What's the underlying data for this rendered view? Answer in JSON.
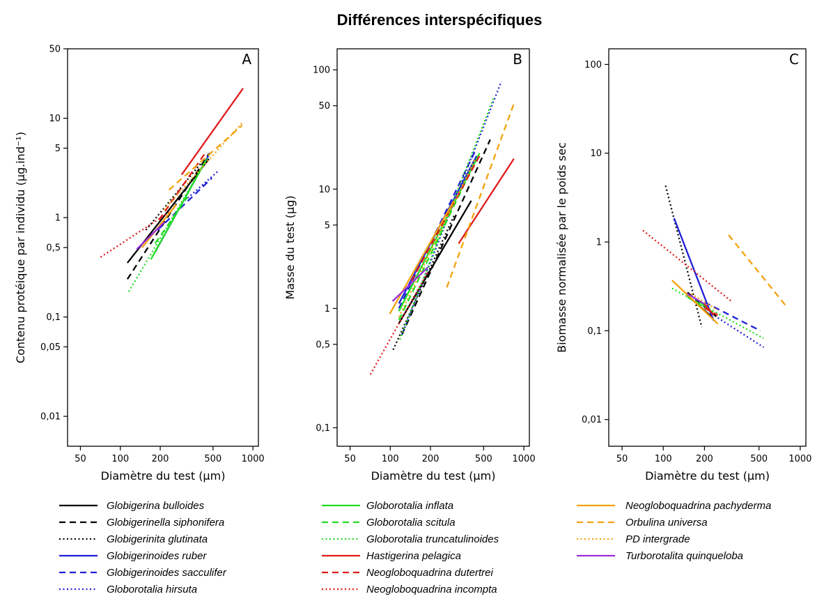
{
  "title": "Différences interspécifiques",
  "species": [
    {
      "name": "Globigerina bulloides",
      "color": "#000000",
      "dash": "solid"
    },
    {
      "name": "Globigerinella siphonifera",
      "color": "#000000",
      "dash": "dashed"
    },
    {
      "name": "Globigerinita glutinata",
      "color": "#000000",
      "dash": "dotted"
    },
    {
      "name": "Globigerinoides ruber",
      "color": "#1f1fd6",
      "dash": "solid"
    },
    {
      "name": "Globigerinoides sacculifer",
      "color": "#1f1fd6",
      "dash": "dashed"
    },
    {
      "name": "Globorotalia hirsuta",
      "color": "#1f1fd6",
      "dash": "dotted"
    },
    {
      "name": "Globorotalia inflata",
      "color": "#22dd22",
      "dash": "solid"
    },
    {
      "name": "Globorotalia scitula",
      "color": "#22dd22",
      "dash": "dashed"
    },
    {
      "name": "Globorotalia truncatulinoides",
      "color": "#22dd22",
      "dash": "dotted"
    },
    {
      "name": "Hastigerina pelagica",
      "color": "#e01b1b",
      "dash": "solid"
    },
    {
      "name": "Neogloboquadrina dutertrei",
      "color": "#e01b1b",
      "dash": "dashed"
    },
    {
      "name": "Neogloboquadrina incompta",
      "color": "#e01b1b",
      "dash": "dotted"
    },
    {
      "name": "Neogloboquadrina pachyderma",
      "color": "#f2a20c",
      "dash": "solid"
    },
    {
      "name": "Orbulina universa",
      "color": "#f2a20c",
      "dash": "dashed"
    },
    {
      "name": "PD intergrade",
      "color": "#f2a20c",
      "dash": "dotted"
    },
    {
      "name": "Turborotalita quinqueloba",
      "color": "#9b30d9",
      "dash": "solid"
    }
  ],
  "chart_data": [
    {
      "type": "line",
      "panel": "A",
      "xlabel": "Diamètre du test (µm)",
      "ylabel": "Contenu protéique par individu (µg.ind⁻¹)",
      "xscale": "log",
      "yscale": "log",
      "xlim": [
        40,
        1100
      ],
      "ylim": [
        0.005,
        50
      ],
      "xticks": [
        50,
        100,
        200,
        500,
        1000
      ],
      "xticklabels": [
        "50",
        "100",
        "200",
        "500",
        "1000"
      ],
      "yticks": [
        0.01,
        0.05,
        0.1,
        0.5,
        1,
        5,
        10,
        50
      ],
      "yticklabels": [
        "0,01",
        "0,05",
        "0,1",
        "0,5",
        "1",
        "5",
        "10",
        "50"
      ],
      "series": [
        {
          "name": "Globigerina bulloides",
          "x": [
            113,
            466
          ],
          "y": [
            0.35,
            3.9
          ]
        },
        {
          "name": "Globigerinella siphonifera",
          "x": [
            113,
            466
          ],
          "y": [
            0.24,
            4.4
          ]
        },
        {
          "name": "Globigerinita glutinata",
          "x": [
            156,
            404
          ],
          "y": [
            0.75,
            3.5
          ]
        },
        {
          "name": "Globigerinoides ruber",
          "x": [
            183,
            475
          ],
          "y": [
            0.45,
            4.5
          ]
        },
        {
          "name": "Globigerinoides sacculifer",
          "x": [
            191,
            490
          ],
          "y": [
            0.75,
            2.5
          ]
        },
        {
          "name": "Globorotalia hirsuta",
          "x": [
            291,
            541
          ],
          "y": [
            1.4,
            2.9
          ]
        },
        {
          "name": "Globorotalia inflata",
          "x": [
            170,
            443
          ],
          "y": [
            0.38,
            3.8
          ]
        },
        {
          "name": "Globorotalia scitula",
          "x": [
            183,
            320
          ],
          "y": [
            0.55,
            1.6
          ]
        },
        {
          "name": "Globorotalia truncatulinoides",
          "x": [
            116,
            466
          ],
          "y": [
            0.18,
            4.2
          ]
        },
        {
          "name": "Hastigerina pelagica",
          "x": [
            290,
            843
          ],
          "y": [
            2.7,
            20.0
          ]
        },
        {
          "name": "Neogloboquadrina dutertrei",
          "x": [
            196,
            443
          ],
          "y": [
            0.95,
            4.6
          ]
        },
        {
          "name": "Neogloboquadrina incompta",
          "x": [
            71,
            250
          ],
          "y": [
            0.4,
            1.2
          ]
        },
        {
          "name": "Neogloboquadrina pachyderma",
          "x": [
            146,
            264
          ],
          "y": [
            0.5,
            1.35
          ]
        },
        {
          "name": "Orbulina universa",
          "x": [
            233,
            830
          ],
          "y": [
            1.9,
            8.5
          ]
        },
        {
          "name": "PD intergrade",
          "x": [
            213,
            830
          ],
          "y": [
            1.2,
            9.0
          ]
        },
        {
          "name": "Turborotalita quinqueloba",
          "x": [
            133,
            215
          ],
          "y": [
            0.48,
            0.9
          ]
        }
      ]
    },
    {
      "type": "line",
      "panel": "B",
      "xlabel": "Diamètre du test (µm)",
      "ylabel": "Masse du test (µg)",
      "xscale": "log",
      "yscale": "log",
      "xlim": [
        40,
        1100
      ],
      "ylim": [
        0.07,
        150
      ],
      "xticks": [
        50,
        100,
        200,
        500,
        1000
      ],
      "xticklabels": [
        "50",
        "100",
        "200",
        "500",
        "1000"
      ],
      "yticks": [
        0.1,
        0.5,
        1,
        5,
        10,
        50,
        100
      ],
      "yticklabels": [
        "0,1",
        "0,5",
        "1",
        "5",
        "10",
        "50",
        "100"
      ],
      "series": [
        {
          "name": "Globigerina bulloides",
          "x": [
            116,
            404
          ],
          "y": [
            0.75,
            8.0
          ]
        },
        {
          "name": "Globigerinella siphonifera",
          "x": [
            122,
            560
          ],
          "y": [
            0.6,
            26.0
          ]
        },
        {
          "name": "Globigerinita glutinata",
          "x": [
            105,
            300
          ],
          "y": [
            0.45,
            6.0
          ]
        },
        {
          "name": "Globigerinoides ruber",
          "x": [
            116,
            443
          ],
          "y": [
            1.1,
            19.0
          ]
        },
        {
          "name": "Globigerinoides sacculifer",
          "x": [
            116,
            433
          ],
          "y": [
            1.0,
            21.0
          ]
        },
        {
          "name": "Globorotalia hirsuta",
          "x": [
            122,
            680
          ],
          "y": [
            0.6,
            80.0
          ]
        },
        {
          "name": "Globorotalia inflata",
          "x": [
            116,
            466
          ],
          "y": [
            0.95,
            20.0
          ]
        },
        {
          "name": "Globorotalia scitula",
          "x": [
            116,
            433
          ],
          "y": [
            0.8,
            17.0
          ]
        },
        {
          "name": "Globorotalia truncatulinoides",
          "x": [
            118,
            600
          ],
          "y": [
            0.55,
            60.0
          ]
        },
        {
          "name": "Hastigerina pelagica",
          "x": [
            325,
            843
          ],
          "y": [
            3.5,
            18.0
          ]
        },
        {
          "name": "Neogloboquadrina dutertrei",
          "x": [
            144,
            466
          ],
          "y": [
            1.7,
            19.0
          ]
        },
        {
          "name": "Neogloboquadrina incompta",
          "x": [
            71,
            190
          ],
          "y": [
            0.28,
            2.0
          ]
        },
        {
          "name": "Neogloboquadrina pachyderma",
          "x": [
            99,
            300
          ],
          "y": [
            0.9,
            8.0
          ]
        },
        {
          "name": "Orbulina universa",
          "x": [
            265,
            843
          ],
          "y": [
            1.5,
            52.0
          ]
        },
        {
          "name": "PD intergrade",
          "x": [
            116,
            433
          ],
          "y": [
            0.85,
            18.0
          ]
        },
        {
          "name": "Turborotalita quinqueloba",
          "x": [
            104,
            190
          ],
          "y": [
            1.15,
            2.2
          ]
        }
      ]
    },
    {
      "type": "line",
      "panel": "C",
      "xlabel": "Diamètre du test (µm)",
      "ylabel": "Biomasse normalisée par le poids sec",
      "xscale": "log",
      "yscale": "log",
      "xlim": [
        40,
        1100
      ],
      "ylim": [
        0.005,
        150
      ],
      "xticks": [
        50,
        100,
        200,
        500,
        1000
      ],
      "xticklabels": [
        "50",
        "100",
        "200",
        "500",
        "1000"
      ],
      "yticks": [
        0.01,
        0.1,
        1,
        10,
        100
      ],
      "yticklabels": [
        "0,01",
        "0,1",
        "1",
        "10",
        "100"
      ],
      "series": [
        {
          "name": "Globigerina bulloides",
          "x": [
            150,
            230
          ],
          "y": [
            0.25,
            0.14
          ]
        },
        {
          "name": "Globigerinella siphonifera",
          "x": [
            150,
            250
          ],
          "y": [
            0.27,
            0.14
          ]
        },
        {
          "name": "Globigerinita glutinata",
          "x": [
            104,
            191
          ],
          "y": [
            4.3,
            0.11
          ]
        },
        {
          "name": "Globigerinoides ruber",
          "x": [
            120,
            233
          ],
          "y": [
            1.85,
            0.13
          ]
        },
        {
          "name": "Globigerinoides sacculifer",
          "x": [
            200,
            512
          ],
          "y": [
            0.21,
            0.1
          ]
        },
        {
          "name": "Globorotalia hirsuta",
          "x": [
            250,
            541
          ],
          "y": [
            0.14,
            0.065
          ]
        },
        {
          "name": "Globorotalia inflata",
          "x": [
            180,
            230
          ],
          "y": [
            0.22,
            0.16
          ]
        },
        {
          "name": "Globorotalia scitula",
          "x": [
            150,
            230
          ],
          "y": [
            0.24,
            0.16
          ]
        },
        {
          "name": "Globorotalia truncatulinoides",
          "x": [
            116,
            541
          ],
          "y": [
            0.3,
            0.082
          ]
        },
        {
          "name": "Hastigerina pelagica",
          "x": [
            200,
            233
          ],
          "y": [
            0.2,
            0.15
          ]
        },
        {
          "name": "Neogloboquadrina dutertrei",
          "x": [
            200,
            250
          ],
          "y": [
            0.18,
            0.15
          ]
        },
        {
          "name": "Neogloboquadrina incompta",
          "x": [
            71,
            320
          ],
          "y": [
            1.35,
            0.21
          ]
        },
        {
          "name": "Neogloboquadrina pachyderma",
          "x": [
            116,
            250
          ],
          "y": [
            0.37,
            0.12
          ]
        },
        {
          "name": "Orbulina universa",
          "x": [
            300,
            788
          ],
          "y": [
            1.2,
            0.19
          ]
        },
        {
          "name": "PD intergrade",
          "x": [
            160,
            250
          ],
          "y": [
            0.26,
            0.17
          ]
        },
        {
          "name": "Turborotalita quinqueloba",
          "x": [
            150,
            200
          ],
          "y": [
            0.26,
            0.2
          ]
        }
      ]
    }
  ]
}
